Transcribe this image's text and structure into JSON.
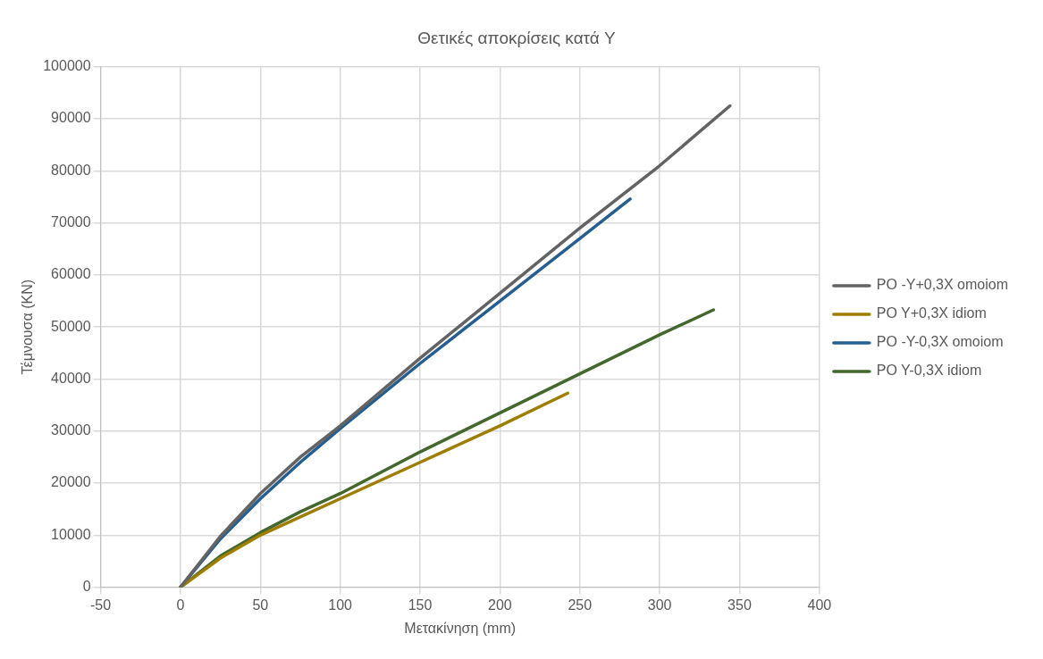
{
  "chart_data": {
    "type": "line",
    "title": "Θετικές αποκρίσεις κατά Y",
    "xlabel": "Μετακίνηση (mm)",
    "ylabel": "Τέμνουσα (KN)",
    "xlim": [
      -50,
      400
    ],
    "xticks": [
      -50,
      0,
      50,
      100,
      150,
      200,
      250,
      300,
      350,
      400
    ],
    "ylim": [
      0,
      100000
    ],
    "yticks": [
      0,
      10000,
      20000,
      30000,
      40000,
      50000,
      60000,
      70000,
      80000,
      90000,
      100000
    ],
    "grid": true,
    "legend": "right",
    "marker": "none",
    "line_style": "solid",
    "series": [
      {
        "name": "PO -Y+0,3X omoiom",
        "color": "#636363",
        "x": [
          0,
          25,
          50,
          75,
          100,
          150,
          200,
          250,
          300,
          344
        ],
        "values": [
          0,
          9800,
          18000,
          25000,
          31000,
          44000,
          56500,
          69000,
          81000,
          92500
        ]
      },
      {
        "name": "PO Y+0,3X idiom",
        "color": "#9e7d00",
        "x": [
          0,
          25,
          50,
          75,
          100,
          150,
          200,
          242.5
        ],
        "values": [
          0,
          5600,
          10000,
          13500,
          17000,
          24000,
          31000,
          37300
        ]
      },
      {
        "name": "PO -Y-0,3X omoiom",
        "color": "#255e91",
        "x": [
          0,
          25,
          50,
          75,
          100,
          150,
          200,
          250,
          281.5
        ],
        "values": [
          0,
          9300,
          17000,
          24000,
          30500,
          43000,
          55000,
          67000,
          74600
        ]
      },
      {
        "name": "PO Y-0,3X idiom",
        "color": "#43682b",
        "x": [
          0,
          25,
          50,
          75,
          100,
          150,
          200,
          250,
          300,
          333.7
        ],
        "values": [
          0,
          6000,
          10500,
          14500,
          18000,
          26000,
          33500,
          41000,
          48500,
          53300
        ]
      }
    ]
  }
}
